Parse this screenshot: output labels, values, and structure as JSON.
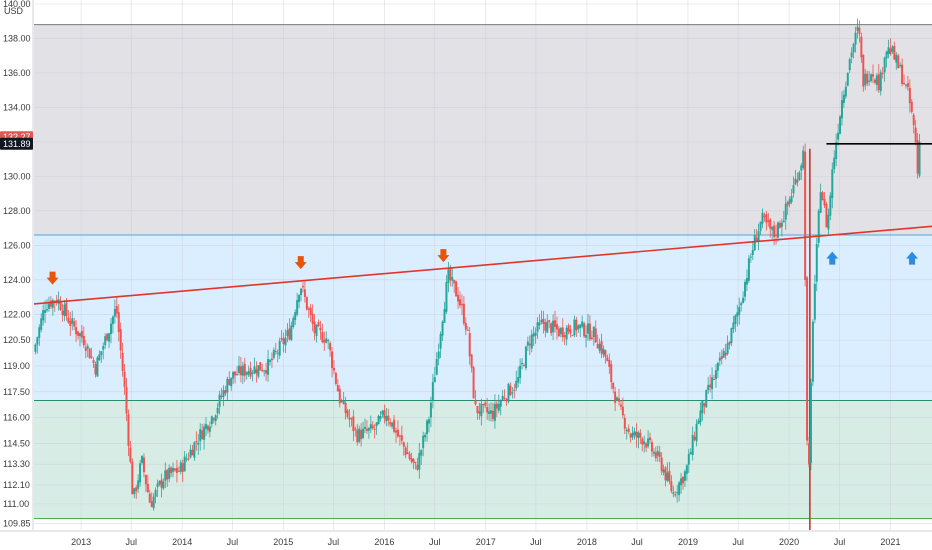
{
  "chart_data": {
    "type": "candlestick",
    "currency": "USD",
    "y_range": [
      109.6,
      140.0
    ],
    "x_range": [
      "2012-07-15",
      "2021-05-31"
    ],
    "y_ticks": [
      "140.00",
      "138.00",
      "136.00",
      "134.00",
      "132.00",
      "130.00",
      "128.00",
      "126.00",
      "124.00",
      "122.00",
      "120.50",
      "119.00",
      "117.50",
      "116.00",
      "114.50",
      "113.30",
      "112.10",
      "111.00",
      "109.85"
    ],
    "x_ticks": [
      {
        "label": "2013",
        "date": "2013-01-01"
      },
      {
        "label": "Jul",
        "date": "2013-07-01"
      },
      {
        "label": "2014",
        "date": "2014-01-01"
      },
      {
        "label": "Jul",
        "date": "2014-07-01"
      },
      {
        "label": "2015",
        "date": "2015-01-01"
      },
      {
        "label": "Jul",
        "date": "2015-07-01"
      },
      {
        "label": "2016",
        "date": "2016-01-01"
      },
      {
        "label": "Jul",
        "date": "2016-07-01"
      },
      {
        "label": "2017",
        "date": "2017-01-01"
      },
      {
        "label": "Jul",
        "date": "2017-07-01"
      },
      {
        "label": "2018",
        "date": "2018-01-01"
      },
      {
        "label": "Jul",
        "date": "2018-07-01"
      },
      {
        "label": "2019",
        "date": "2019-01-01"
      },
      {
        "label": "Jul",
        "date": "2019-07-01"
      },
      {
        "label": "2020",
        "date": "2020-01-01"
      },
      {
        "label": "Jul",
        "date": "2020-07-01"
      },
      {
        "label": "2021",
        "date": "2021-01-01"
      }
    ],
    "price_path": [
      [
        "2012-07-20",
        119.8
      ],
      [
        "2012-09-01",
        122.6
      ],
      [
        "2012-10-15",
        122.9
      ],
      [
        "2012-12-01",
        121.5
      ],
      [
        "2013-01-20",
        120.5
      ],
      [
        "2013-03-01",
        118.9
      ],
      [
        "2013-04-15",
        121.0
      ],
      [
        "2013-05-15",
        122.4
      ],
      [
        "2013-06-15",
        117.5
      ],
      [
        "2013-07-15",
        111.2
      ],
      [
        "2013-08-15",
        113.5
      ],
      [
        "2013-09-15",
        111.0
      ],
      [
        "2013-11-01",
        112.5
      ],
      [
        "2014-01-01",
        113.0
      ],
      [
        "2014-03-01",
        114.7
      ],
      [
        "2014-05-01",
        116.2
      ],
      [
        "2014-07-01",
        118.4
      ],
      [
        "2014-09-01",
        118.8
      ],
      [
        "2014-11-15",
        119.0
      ],
      [
        "2015-02-01",
        121.0
      ],
      [
        "2015-03-10",
        123.8
      ],
      [
        "2015-05-01",
        121.0
      ],
      [
        "2015-06-15",
        120.6
      ],
      [
        "2015-08-01",
        117.0
      ],
      [
        "2015-10-01",
        115.0
      ],
      [
        "2015-12-01",
        115.3
      ],
      [
        "2016-01-15",
        116.3
      ],
      [
        "2016-03-01",
        114.8
      ],
      [
        "2016-05-01",
        113.0
      ],
      [
        "2016-06-15",
        115.8
      ],
      [
        "2016-08-01",
        121.5
      ],
      [
        "2016-08-25",
        124.2
      ],
      [
        "2016-10-01",
        123.0
      ],
      [
        "2016-11-01",
        121.2
      ],
      [
        "2016-12-01",
        116.5
      ],
      [
        "2017-02-01",
        116.2
      ],
      [
        "2017-03-15",
        117.3
      ],
      [
        "2017-05-01",
        118.0
      ],
      [
        "2017-06-15",
        120.5
      ],
      [
        "2017-08-01",
        121.5
      ],
      [
        "2017-10-01",
        121.0
      ],
      [
        "2017-12-01",
        121.3
      ],
      [
        "2018-02-01",
        120.9
      ],
      [
        "2018-03-15",
        119.6
      ],
      [
        "2018-05-01",
        116.6
      ],
      [
        "2018-06-15",
        115.0
      ],
      [
        "2018-08-01",
        114.8
      ],
      [
        "2018-10-01",
        113.4
      ],
      [
        "2018-11-15",
        111.6
      ],
      [
        "2019-01-01",
        112.9
      ],
      [
        "2019-02-15",
        116.0
      ],
      [
        "2019-04-01",
        117.9
      ],
      [
        "2019-06-01",
        120.2
      ],
      [
        "2019-07-15",
        122.6
      ],
      [
        "2019-09-01",
        126.0
      ],
      [
        "2019-10-01",
        127.5
      ],
      [
        "2019-11-15",
        126.6
      ],
      [
        "2020-01-01",
        128.2
      ],
      [
        "2020-02-15",
        130.5
      ],
      [
        "2020-03-01",
        131.5
      ],
      [
        "2020-03-16",
        110.1
      ],
      [
        "2020-04-01",
        121.3
      ],
      [
        "2020-05-01",
        129.5
      ],
      [
        "2020-05-25",
        127.0
      ],
      [
        "2020-06-15",
        130.8
      ],
      [
        "2020-07-15",
        134.3
      ],
      [
        "2020-08-20",
        137.3
      ],
      [
        "2020-09-15",
        138.6
      ],
      [
        "2020-10-01",
        135.5
      ],
      [
        "2020-11-01",
        136.2
      ],
      [
        "2020-12-01",
        135.3
      ],
      [
        "2020-12-20",
        137.4
      ],
      [
        "2021-01-10",
        137.3
      ],
      [
        "2021-02-15",
        136.0
      ],
      [
        "2021-03-15",
        134.6
      ],
      [
        "2021-04-08",
        132.3
      ],
      [
        "2021-04-15",
        129.8
      ],
      [
        "2021-04-20",
        132.0
      ]
    ],
    "shaded_zones": [
      {
        "from": 126.6,
        "to": 138.8,
        "color": "#e2e2e6"
      },
      {
        "from": 117.0,
        "to": 126.6,
        "color": "#dbeeff"
      },
      {
        "from": 110.15,
        "to": 117.0,
        "color": "#d8ece6"
      }
    ],
    "horizontal_lines": [
      {
        "value": 138.8,
        "color": "#7a7a7a"
      },
      {
        "value": 126.6,
        "color": "#5aa3d6"
      },
      {
        "value": 117.0,
        "color": "#2e8b6e"
      },
      {
        "value": 110.15,
        "color": "#4caf50"
      }
    ],
    "trend_line": {
      "start": [
        "2012-07-15",
        122.6
      ],
      "end": [
        "2021-05-31",
        127.1
      ],
      "color": "#e0352c"
    },
    "support_line": {
      "from": "2020-05-15",
      "to": "2021-05-31",
      "value": 131.89,
      "color": "#000000"
    },
    "vertical_marker": {
      "date": "2020-03-16",
      "color": "#c0392b"
    },
    "markers": [
      {
        "date": "2012-09-20",
        "price": 123.2,
        "direction": "down",
        "color": "#e8540a"
      },
      {
        "date": "2015-03-05",
        "price": 124.1,
        "direction": "down",
        "color": "#e8540a"
      },
      {
        "date": "2016-08-01",
        "price": 124.5,
        "direction": "down",
        "color": "#e8540a"
      },
      {
        "date": "2020-06-05",
        "price": 126.1,
        "direction": "up",
        "color": "#2d8be0"
      },
      {
        "date": "2021-03-20",
        "price": 126.1,
        "direction": "up",
        "color": "#2d8be0"
      }
    ],
    "price_labels": [
      {
        "text": "132.27",
        "value": 132.27,
        "color": "#e65454"
      },
      {
        "text": "131.89",
        "value": 131.89,
        "color": "#131722"
      }
    ],
    "colors": {
      "up": "#26a69a",
      "down": "#ef5350"
    }
  }
}
